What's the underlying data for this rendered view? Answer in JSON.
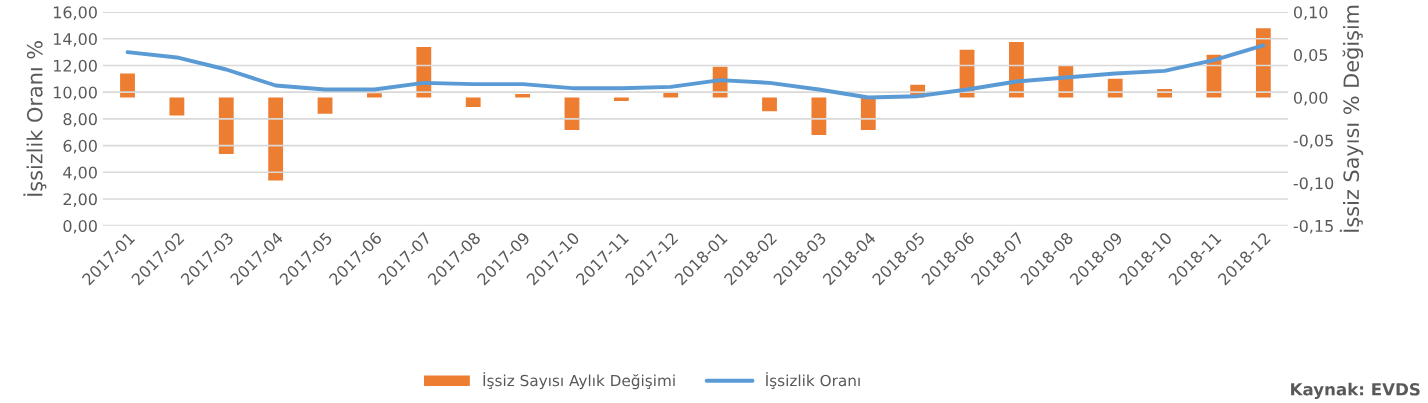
{
  "chart_data": {
    "type": "bar",
    "ylabel": "İşsizlik Oranı %",
    "y2label": "İşsiz Sayısı % Değişim",
    "categories": [
      "2017-01",
      "2017-02",
      "2017-03",
      "2017-04",
      "2017-05",
      "2017-06",
      "2017-07",
      "2017-08",
      "2017-09",
      "2017-10",
      "2017-11",
      "2017-12",
      "2018-01",
      "2018-02",
      "2018-03",
      "2018-04",
      "2018-05",
      "2018-06",
      "2018-07",
      "2018-08",
      "2018-09",
      "2018-10",
      "2018-11",
      "2018-12"
    ],
    "series": [
      {
        "name": "İşsiz Sayısı Aylık Değişimi",
        "axis": "y2",
        "color": "#ed7d31",
        "values": [
          0.028,
          -0.021,
          -0.066,
          -0.097,
          -0.019,
          0.005,
          0.059,
          -0.011,
          0.004,
          -0.038,
          -0.004,
          0.006,
          0.036,
          -0.016,
          -0.044,
          -0.038,
          0.015,
          0.056,
          0.065,
          0.038,
          0.022,
          0.01,
          0.05,
          0.081
        ]
      },
      {
        "name": "İşsizlik Oranı",
        "type": "line",
        "axis": "y",
        "color": "#5b9bd5",
        "values": [
          13.0,
          12.6,
          11.7,
          10.5,
          10.2,
          10.2,
          10.7,
          10.6,
          10.6,
          10.3,
          10.3,
          10.4,
          10.9,
          10.7,
          10.2,
          9.6,
          9.7,
          10.2,
          10.8,
          11.1,
          11.4,
          11.6,
          12.4,
          13.5
        ]
      }
    ],
    "ylim": [
      0,
      16
    ],
    "yticks": [
      {
        "value": 0,
        "label": "0,00"
      },
      {
        "value": 2,
        "label": "2,00"
      },
      {
        "value": 4,
        "label": "4,00"
      },
      {
        "value": 6,
        "label": "6,00"
      },
      {
        "value": 8,
        "label": "8,00"
      },
      {
        "value": 10,
        "label": "10,00"
      },
      {
        "value": 12,
        "label": "12,00"
      },
      {
        "value": 14,
        "label": "14,00"
      },
      {
        "value": 16,
        "label": "16,00"
      }
    ],
    "y2lim": [
      -0.15,
      0.1
    ],
    "y2ticks": [
      {
        "value": -0.15,
        "label": "-0,15"
      },
      {
        "value": -0.1,
        "label": "-0,10"
      },
      {
        "value": -0.05,
        "label": "-0,05"
      },
      {
        "value": 0,
        "label": "0,00"
      },
      {
        "value": 0.05,
        "label": "0,05"
      },
      {
        "value": 0.1,
        "label": "0,10"
      }
    ],
    "grid": "y",
    "legend": "bottom",
    "marker": "none",
    "line_style": "solid",
    "annotations": [
      "Kaynak: EVDS"
    ]
  }
}
